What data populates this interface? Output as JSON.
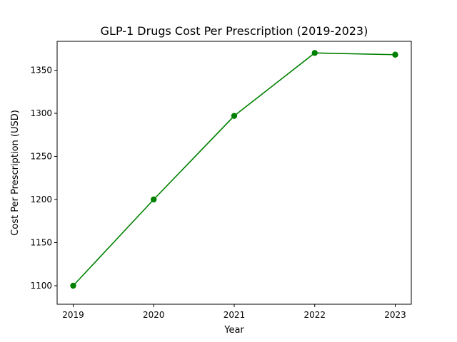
{
  "chart_data": {
    "type": "line",
    "title": "GLP-1 Drugs Cost Per Prescription (2019-2023)",
    "xlabel": "Year",
    "ylabel": "Cost Per Prescription (USD)",
    "x": [
      "2019",
      "2020",
      "2021",
      "2022",
      "2023"
    ],
    "series": [
      {
        "values": [
          1100,
          1200,
          1297,
          1370,
          1368
        ],
        "color": "#008000",
        "marker": "circle"
      }
    ],
    "yticks": [
      1100,
      1150,
      1200,
      1250,
      1300,
      1350
    ],
    "ylim": [
      1078.5,
      1383.5
    ],
    "grid": false,
    "legend": false
  }
}
